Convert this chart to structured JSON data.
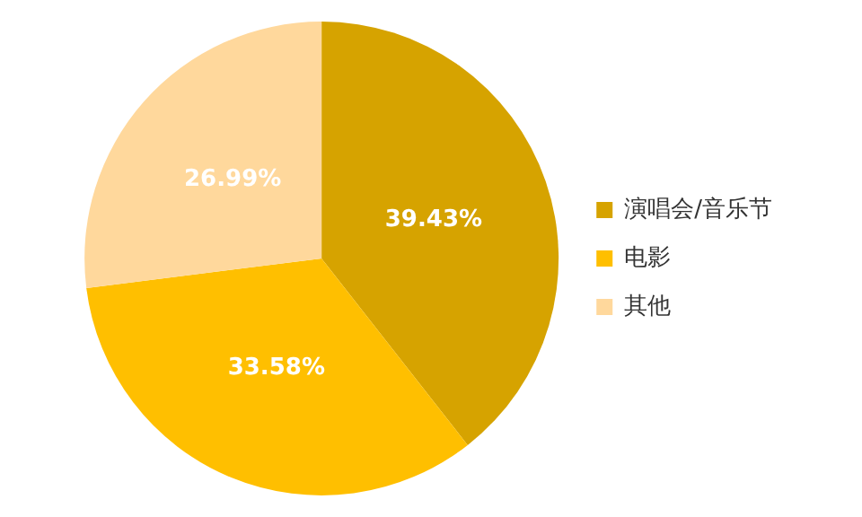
{
  "chart_data": {
    "type": "pie",
    "categories": [
      "演唱会/音乐节",
      "电影",
      "其他"
    ],
    "values": [
      39.43,
      33.58,
      26.99
    ],
    "value_labels": [
      "39.43%",
      "33.58%",
      "26.99%"
    ],
    "colors": [
      "#d6a300",
      "#ffbf00",
      "#ffd89c"
    ],
    "legend": "right"
  }
}
